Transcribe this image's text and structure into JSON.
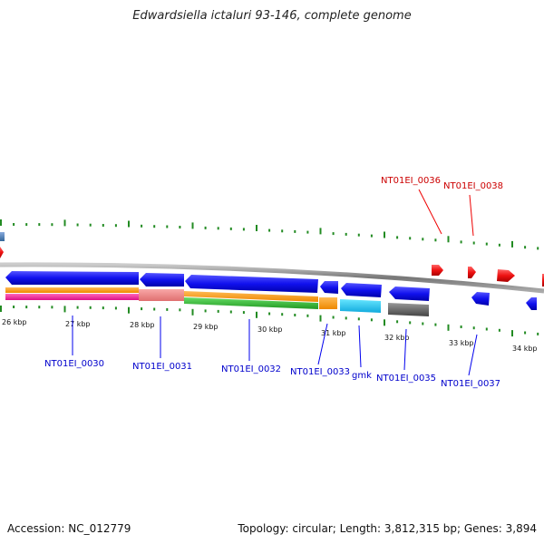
{
  "title": "Edwardsiella ictaluri 93-146, complete genome",
  "accession": "Accession: NC_012779",
  "summary": "Topology: circular; Length: 3,812,315 bp; Genes: 3,894",
  "colors": {
    "forward_gene": "#ee1111",
    "reverse_gene": "#1111ee",
    "backbone": "#888888",
    "tick": "#228b22"
  },
  "scale_labels": [
    "26 kbp",
    "27 kbp",
    "28 kbp",
    "29 kbp",
    "30 kbp",
    "31 kbp",
    "32 kbp",
    "33 kbp",
    "34 kbp"
  ],
  "forward_gene_labels": [
    "NT01EI_0036",
    "NT01EI_0038"
  ],
  "reverse_gene_labels": [
    "NT01EI_0030",
    "NT01EI_0031",
    "NT01EI_0032",
    "NT01EI_0033",
    "gmk",
    "NT01EI_0035",
    "NT01EI_0037"
  ],
  "annotation_tracks": [
    {
      "gene": "NT01EI_0030",
      "colors": [
        "#ff9900",
        "#ee2299"
      ]
    },
    {
      "gene": "NT01EI_0031",
      "colors": [
        "#f08080"
      ]
    },
    {
      "gene": "NT01EI_0032",
      "colors": [
        "#ff9900",
        "#33bb33"
      ]
    },
    {
      "gene": "NT01EI_0033",
      "colors": [
        "#ff9900"
      ]
    },
    {
      "gene": "gmk",
      "colors": [
        "#22ccee"
      ]
    },
    {
      "gene": "NT01EI_0035",
      "colors": [
        "#666666"
      ]
    }
  ]
}
